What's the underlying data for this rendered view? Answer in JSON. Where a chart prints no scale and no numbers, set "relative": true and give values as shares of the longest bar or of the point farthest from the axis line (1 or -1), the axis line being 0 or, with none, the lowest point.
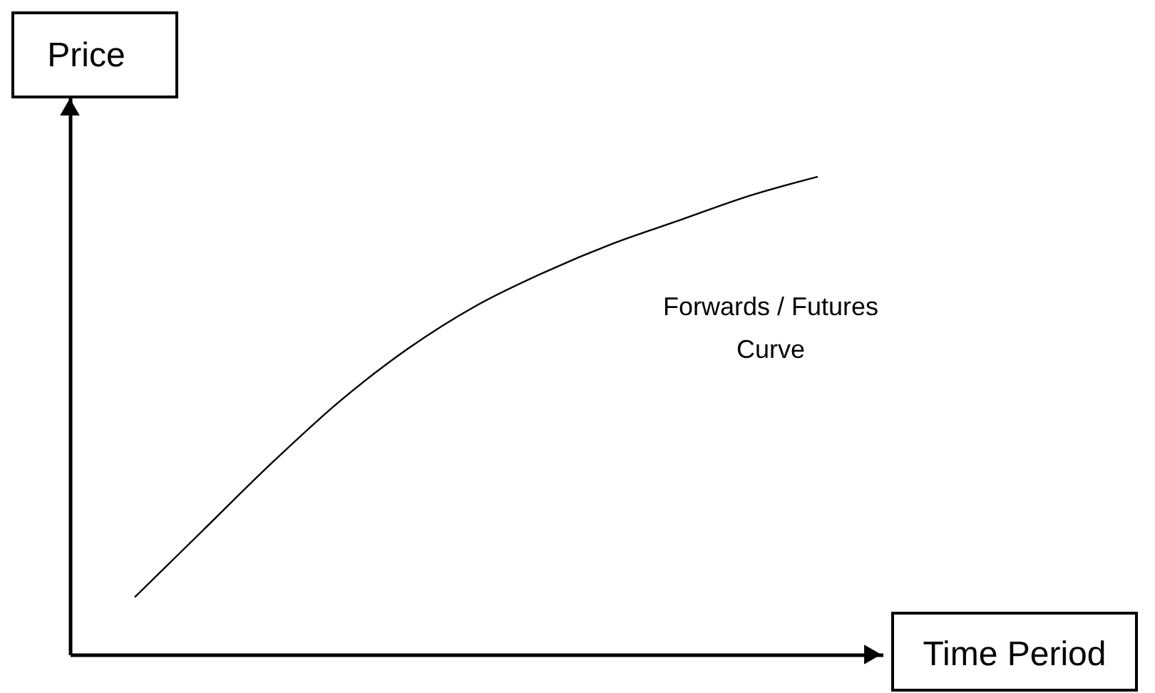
{
  "chart_data": {
    "type": "line",
    "relative": true,
    "xlabel": "Time Period",
    "ylabel": "Price",
    "categories": [
      null,
      null,
      null,
      null,
      null,
      null,
      null,
      null,
      null,
      null,
      null
    ],
    "series": [
      {
        "name": "Forwards / Futures Curve",
        "color": "#000000",
        "values": [
          0.12,
          0.26,
          0.4,
          0.53,
          0.64,
          0.73,
          0.8,
          0.86,
          0.91,
          0.96,
          1
        ]
      }
    ]
  }
}
